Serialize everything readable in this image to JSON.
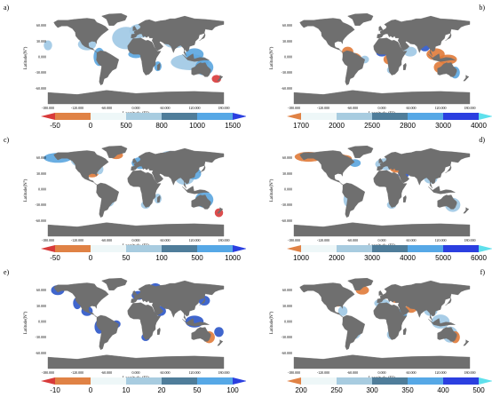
{
  "colors": {
    "land": "#6f6f6f",
    "sea": "#ffffff",
    "coast_light": "#9ec8e4",
    "coast_mid": "#5aa5df",
    "coast_dark": "#2b55c8",
    "hot": "#e07a38",
    "red": "#d83a3a"
  },
  "chart_data": [
    {
      "panel": "a)",
      "type": "map",
      "xlabel": "Longitude (E°)",
      "ylabel": "Latitude(N°)",
      "x_ticks": [
        "-180.000",
        "-120.000",
        "-60.000",
        "0.000",
        "60.000",
        "120.000",
        "180.000"
      ],
      "y_ticks": [
        "60.000",
        "30.000",
        "0.000",
        "-30.000",
        "-60.000"
      ],
      "colorbar": {
        "labels": [
          "-50",
          "0",
          "500",
          "800",
          "1000",
          "1500"
        ],
        "colors": [
          "#d83a3a",
          "#e08245",
          "#eef7f8",
          "#a8cce0",
          "#4f7d9a",
          "#56a8e6",
          "#2b3fe0"
        ],
        "left_arrow": true,
        "right_arrow": true
      }
    },
    {
      "panel": "b)",
      "type": "map",
      "xlabel": "Longitude (E°)",
      "ylabel": "Latitude(N°)",
      "x_ticks": [
        "-180.000",
        "-120.000",
        "-60.000",
        "0.000",
        "60.000",
        "120.000",
        "180.000"
      ],
      "y_ticks": [
        "60.000",
        "30.000",
        "0.000",
        "-30.000",
        "-60.000"
      ],
      "colorbar": {
        "labels": [
          "1700",
          "2000",
          "2500",
          "2800",
          "3000",
          "4000"
        ],
        "colors": [
          "#e08245",
          "#eef7f8",
          "#a8cce0",
          "#4f7d9a",
          "#56a8e6",
          "#2b3fe0",
          "#5ee0ec"
        ],
        "left_arrow": true,
        "right_arrow": true
      }
    },
    {
      "panel": "c)",
      "type": "map",
      "xlabel": "Longitude (E°)",
      "ylabel": "Latitude(N°)",
      "x_ticks": [
        "-180.000",
        "-120.000",
        "-60.000",
        "0.000",
        "60.000",
        "120.000",
        "180.000"
      ],
      "y_ticks": [
        "60.000",
        "30.000",
        "0.000",
        "-30.000",
        "-60.000"
      ],
      "colorbar": {
        "labels": [
          "-50",
          "0",
          "50",
          "100",
          "500",
          "1000"
        ],
        "colors": [
          "#d83a3a",
          "#e08245",
          "#eef7f8",
          "#a8cce0",
          "#4f7d9a",
          "#56a8e6",
          "#2b3fe0"
        ],
        "left_arrow": true,
        "right_arrow": true
      }
    },
    {
      "panel": "d)",
      "type": "map",
      "xlabel": "Longitude (E°)",
      "ylabel": "Latitude(N°)",
      "x_ticks": [
        "-180.000",
        "-120.000",
        "-60.000",
        "0.000",
        "60.000",
        "120.000",
        "180.000"
      ],
      "y_ticks": [
        "60.000",
        "30.000",
        "0.000",
        "-30.000",
        "-60.000"
      ],
      "colorbar": {
        "labels": [
          "1000",
          "2000",
          "3000",
          "4000",
          "5000",
          "6000"
        ],
        "colors": [
          "#e08245",
          "#eef7f8",
          "#a8cce0",
          "#4f7d9a",
          "#56a8e6",
          "#2b3fe0",
          "#5ee0ec"
        ],
        "left_arrow": true,
        "right_arrow": true
      }
    },
    {
      "panel": "e)",
      "type": "map",
      "xlabel": "Longitude (E°)",
      "ylabel": "Latitude(N°)",
      "x_ticks": [
        "-180.000",
        "-120.000",
        "-60.000",
        "0.000",
        "60.000",
        "120.000",
        "180.000"
      ],
      "y_ticks": [
        "60.000",
        "30.000",
        "0.000",
        "-30.000",
        "-60.000"
      ],
      "colorbar": {
        "labels": [
          "-10",
          "0",
          "10",
          "20",
          "50",
          "100"
        ],
        "colors": [
          "#d83a3a",
          "#e08245",
          "#eef7f8",
          "#a8cce0",
          "#4f7d9a",
          "#56a8e6",
          "#2b3fe0"
        ],
        "left_arrow": true,
        "right_arrow": true
      }
    },
    {
      "panel": "f)",
      "type": "map",
      "xlabel": "Longitude (E°)",
      "ylabel": "Latitude(N°)",
      "x_ticks": [
        "-180.000",
        "-120.000",
        "-60.000",
        "0.000",
        "60.000",
        "120.000",
        "180.000"
      ],
      "y_ticks": [
        "60.000",
        "30.000",
        "0.000",
        "-30.000",
        "-60.000"
      ],
      "colorbar": {
        "labels": [
          "200",
          "250",
          "300",
          "350",
          "400",
          "500"
        ],
        "colors": [
          "#e08245",
          "#eef7f8",
          "#a8cce0",
          "#4f7d9a",
          "#56a8e6",
          "#2b3fe0",
          "#5ee0ec"
        ],
        "left_arrow": true,
        "right_arrow": true
      }
    }
  ]
}
